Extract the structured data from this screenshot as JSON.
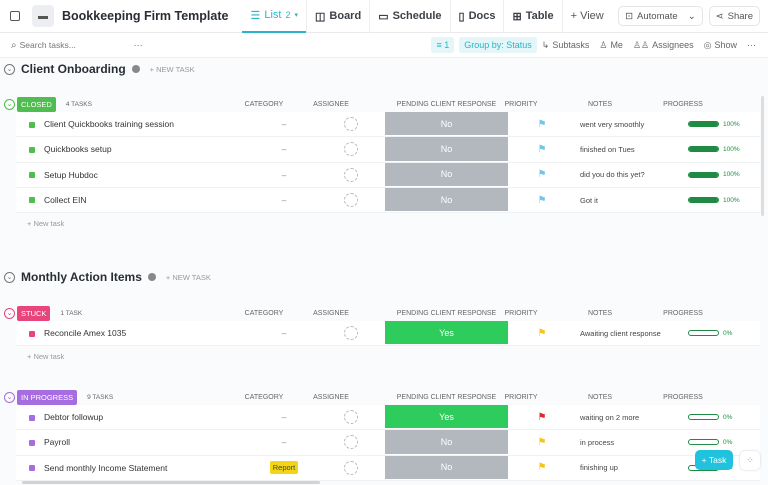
{
  "header": {
    "title": "Bookkeeping Firm Template",
    "views": [
      {
        "label": "List",
        "badge": "2"
      },
      {
        "label": "Board"
      },
      {
        "label": "Schedule"
      },
      {
        "label": "Docs"
      },
      {
        "label": "Table"
      },
      {
        "label": "+ View"
      }
    ],
    "automate": "Automate",
    "share": "Share"
  },
  "toolbar": {
    "search_placeholder": "Search tasks...",
    "filter": "1",
    "group_by": "Group by: Status",
    "subtasks": "Subtasks",
    "me": "Me",
    "assignees": "Assignees",
    "show": "Show"
  },
  "columns": {
    "category": "CATEGORY",
    "assignee": "ASSIGNEE",
    "pending": "PENDING CLIENT RESPONSE",
    "priority": "PRIORITY",
    "notes": "NOTES",
    "progress": "PROGRESS"
  },
  "new_task": "+ New task",
  "section_new_task": "+ NEW TASK",
  "sections": [
    {
      "title": "Client Onboarding",
      "groups": [
        {
          "status": "CLOSED",
          "color": "#4fbd4f",
          "count": "4 TASKS",
          "tasks": [
            {
              "name": "Client Quickbooks training session",
              "category": "–",
              "pending": "No",
              "priority_color": "#6fc8e8",
              "notes": "went very smoothly",
              "progress": 100,
              "progress_label": "100%"
            },
            {
              "name": "Quickbooks setup",
              "category": "–",
              "pending": "No",
              "priority_color": "#6fc8e8",
              "notes": "finished on Tues",
              "progress": 100,
              "progress_label": "100%"
            },
            {
              "name": "Setup Hubdoc",
              "category": "–",
              "pending": "No",
              "priority_color": "#6fc8e8",
              "notes": "did you do this yet?",
              "progress": 100,
              "progress_label": "100%"
            },
            {
              "name": "Collect EIN",
              "category": "–",
              "pending": "No",
              "priority_color": "#6fc8e8",
              "notes": "Got it",
              "progress": 100,
              "progress_label": "100%"
            }
          ]
        }
      ]
    },
    {
      "title": "Monthly Action Items",
      "groups": [
        {
          "status": "STUCK",
          "color": "#e8457d",
          "count": "1 TASK",
          "tasks": [
            {
              "name": "Reconcile Amex 1035",
              "category": "–",
              "pending": "Yes",
              "priority_color": "#f5c518",
              "notes": "Awaiting client response",
              "progress": 0,
              "progress_label": "0%"
            }
          ]
        },
        {
          "status": "IN PROGRESS",
          "color": "#a66de0",
          "count": "9 TASKS",
          "tasks": [
            {
              "name": "Debtor followup",
              "category": "–",
              "pending": "Yes",
              "priority_color": "#e0282e",
              "notes": "waiting on 2 more",
              "progress": 0,
              "progress_label": "0%"
            },
            {
              "name": "Payroll",
              "category": "–",
              "pending": "No",
              "priority_color": "#f5c518",
              "notes": "in process",
              "progress": 0,
              "progress_label": "0%"
            },
            {
              "name": "Send monthly Income Statement",
              "category": "Report",
              "pending": "No",
              "priority_color": "#f5c518",
              "notes": "finishing up",
              "progress": 0,
              "progress_label": "0%"
            }
          ]
        }
      ]
    }
  ],
  "pending_colors": {
    "Yes": "#2ecc5c",
    "No": "#b3b8bf"
  },
  "fab": "+ Task"
}
